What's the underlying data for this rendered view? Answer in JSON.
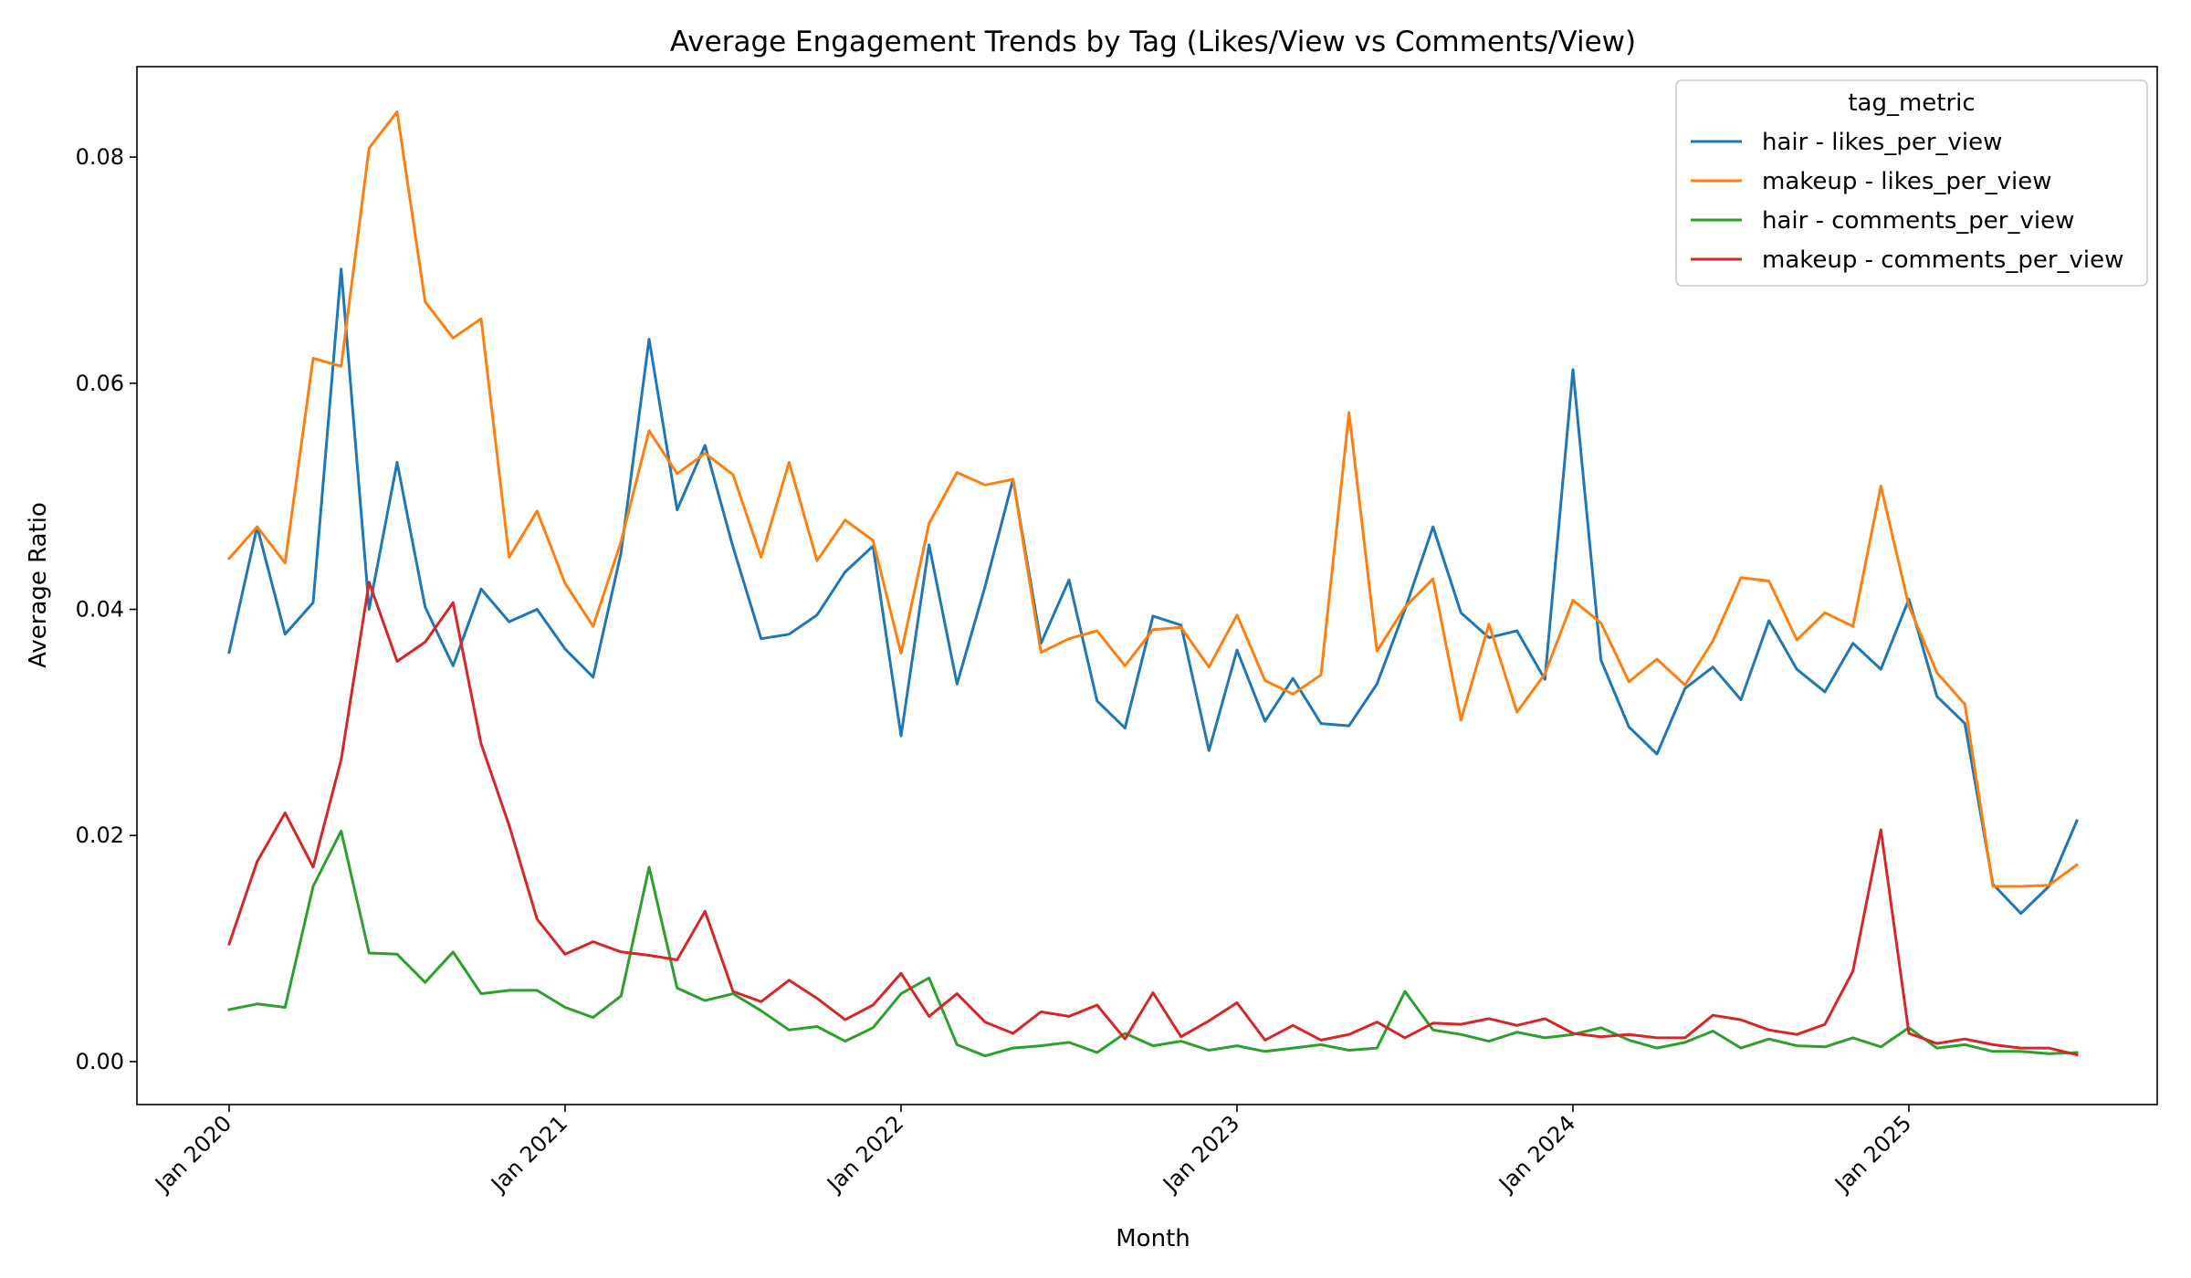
{
  "chart_data": {
    "type": "line",
    "title": "Average Engagement Trends by Tag (Likes/View vs Comments/View)",
    "xlabel": "Month",
    "ylabel": "Average Ratio",
    "x_tick_labels": [
      "Jan 2020",
      "Jan 2021",
      "Jan 2022",
      "Jan 2023",
      "Jan 2024",
      "Jan 2025"
    ],
    "y_ticks": [
      "0.00",
      "0.02",
      "0.04",
      "0.06",
      "0.08"
    ],
    "ylim": [
      -0.0038,
      0.088
    ],
    "x_start": "2020-01",
    "x_end": "2025-07",
    "grid": false,
    "legend": {
      "title": "tag_metric",
      "placement": "top-right"
    },
    "series": [
      {
        "name": "hair - likes_per_view",
        "color": "#1f77b4",
        "values": [
          0.0362,
          0.0473,
          0.0378,
          0.0406,
          0.0701,
          0.04,
          0.053,
          0.0402,
          0.035,
          0.0418,
          0.0389,
          0.04,
          0.0365,
          0.034,
          0.045,
          0.0639,
          0.0488,
          0.0545,
          0.0455,
          0.0374,
          0.0378,
          0.0395,
          0.0433,
          0.0456,
          0.0288,
          0.0457,
          0.0334,
          0.042,
          0.0515,
          0.037,
          0.0426,
          0.0319,
          0.0295,
          0.0394,
          0.0386,
          0.0275,
          0.0364,
          0.0301,
          0.0339,
          0.0299,
          0.0297,
          0.0334,
          0.04,
          0.0473,
          0.0397,
          0.0375,
          0.0381,
          0.0338,
          0.0612,
          0.0355,
          0.0296,
          0.0272,
          0.033,
          0.0349,
          0.032,
          0.039,
          0.0347,
          0.0327,
          0.037,
          0.0347,
          0.0409,
          0.0323,
          0.0299,
          0.0157,
          0.0131,
          0.0155,
          0.0213
        ]
      },
      {
        "name": "makeup - likes_per_view",
        "color": "#ff7f0e",
        "values": [
          0.0445,
          0.0473,
          0.0441,
          0.0622,
          0.0615,
          0.0808,
          0.084,
          0.0672,
          0.064,
          0.0657,
          0.0446,
          0.0487,
          0.0423,
          0.0385,
          0.046,
          0.0558,
          0.052,
          0.0538,
          0.0519,
          0.0446,
          0.053,
          0.0443,
          0.0479,
          0.0461,
          0.0361,
          0.0476,
          0.0521,
          0.051,
          0.0515,
          0.0362,
          0.0374,
          0.0381,
          0.035,
          0.0382,
          0.0384,
          0.0349,
          0.0395,
          0.0337,
          0.0325,
          0.0342,
          0.0574,
          0.0363,
          0.0402,
          0.0427,
          0.0302,
          0.0387,
          0.0309,
          0.0343,
          0.0408,
          0.0388,
          0.0336,
          0.0356,
          0.0333,
          0.0372,
          0.0428,
          0.0425,
          0.0373,
          0.0397,
          0.0385,
          0.0509,
          0.0403,
          0.0344,
          0.0316,
          0.0155,
          0.0155,
          0.0156,
          0.0174
        ]
      },
      {
        "name": "hair - comments_per_view",
        "color": "#2ca02c",
        "values": [
          0.0046,
          0.0051,
          0.0048,
          0.0155,
          0.0204,
          0.0096,
          0.0095,
          0.007,
          0.0097,
          0.006,
          0.0063,
          0.0063,
          0.0048,
          0.0039,
          0.0058,
          0.0172,
          0.0065,
          0.0054,
          0.006,
          0.0045,
          0.0028,
          0.0031,
          0.0018,
          0.003,
          0.006,
          0.0074,
          0.0015,
          0.0005,
          0.0012,
          0.0014,
          0.0017,
          0.0008,
          0.0025,
          0.0014,
          0.0018,
          0.001,
          0.0014,
          0.0009,
          0.0012,
          0.0015,
          0.001,
          0.0012,
          0.0062,
          0.0028,
          0.0024,
          0.0018,
          0.0026,
          0.0021,
          0.0024,
          0.003,
          0.0019,
          0.0012,
          0.0017,
          0.0027,
          0.0012,
          0.002,
          0.0014,
          0.0013,
          0.0021,
          0.0013,
          0.003,
          0.0012,
          0.0015,
          0.0009,
          0.0009,
          0.0007,
          0.0008
        ]
      },
      {
        "name": "makeup - comments_per_view",
        "color": "#d62728",
        "values": [
          0.0104,
          0.0177,
          0.022,
          0.0172,
          0.0267,
          0.0424,
          0.0354,
          0.0371,
          0.0406,
          0.0281,
          0.0209,
          0.0126,
          0.0095,
          0.0106,
          0.0097,
          0.0094,
          0.009,
          0.0133,
          0.0062,
          0.0053,
          0.0072,
          0.0056,
          0.0037,
          0.005,
          0.0078,
          0.004,
          0.006,
          0.0035,
          0.0025,
          0.0044,
          0.004,
          0.005,
          0.002,
          0.0061,
          0.0022,
          0.0036,
          0.0052,
          0.0019,
          0.0032,
          0.0019,
          0.0024,
          0.0035,
          0.0021,
          0.0034,
          0.0033,
          0.0038,
          0.0032,
          0.0038,
          0.0025,
          0.0022,
          0.0024,
          0.0021,
          0.0021,
          0.0041,
          0.0037,
          0.0028,
          0.0024,
          0.0033,
          0.008,
          0.0205,
          0.0025,
          0.0016,
          0.002,
          0.0015,
          0.0012,
          0.0012,
          0.0006
        ]
      }
    ]
  }
}
